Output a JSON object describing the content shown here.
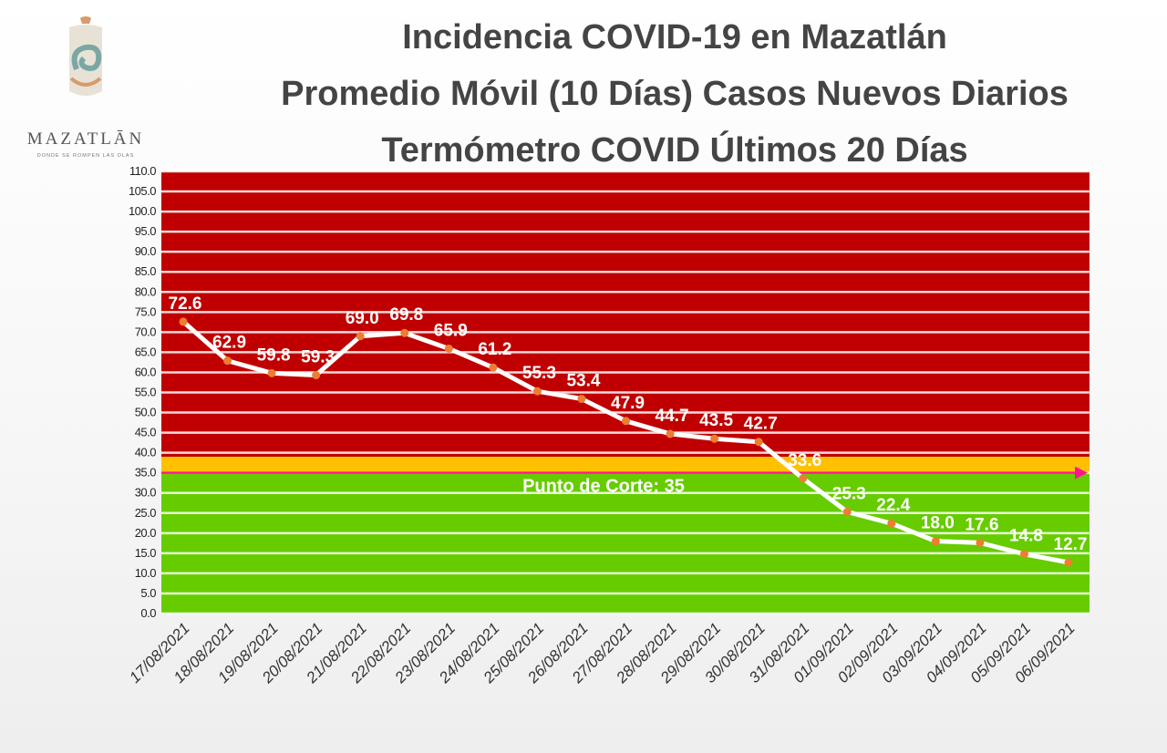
{
  "logo": {
    "name": "MAZATLĀN",
    "tagline": "DONDE SE ROMPEN LAS OLAS"
  },
  "titles": {
    "line1": "Incidencia COVID-19 en Mazatlán",
    "line2": "Promedio Móvil (10 Días) Casos Nuevos Diarios",
    "line3": "Termómetro COVID Últimos 20 Días"
  },
  "colors": {
    "red_zone": "#c00000",
    "yellow_zone": "#ffc000",
    "green_zone": "#66cc00",
    "line": "#ffffff",
    "marker": "#ed7d31",
    "cut_line": "#ff1493"
  },
  "chart_data": {
    "type": "line",
    "title": "Termómetro COVID Últimos 20 Días",
    "categories": [
      "17/08/2021",
      "18/08/2021",
      "19/08/2021",
      "20/08/2021",
      "21/08/2021",
      "22/08/2021",
      "23/08/2021",
      "24/08/2021",
      "25/08/2021",
      "26/08/2021",
      "27/08/2021",
      "28/08/2021",
      "29/08/2021",
      "30/08/2021",
      "31/08/2021",
      "01/09/2021",
      "02/09/2021",
      "03/09/2021",
      "04/09/2021",
      "05/09/2021",
      "06/09/2021"
    ],
    "values": [
      72.6,
      62.9,
      59.8,
      59.3,
      69.0,
      69.8,
      65.9,
      61.2,
      55.3,
      53.4,
      47.9,
      44.7,
      43.5,
      42.7,
      33.6,
      25.3,
      22.4,
      18.0,
      17.6,
      14.8,
      12.7
    ],
    "data_labels": [
      "72.6",
      "62.9",
      "59.8",
      "59.3",
      "69.0",
      "69.8",
      "65.9",
      "61.2",
      "55.3",
      "53.4",
      "47.9",
      "44.7",
      "43.5",
      "42.7",
      "33.6",
      "25.3",
      "22.4",
      "18.0",
      "17.6",
      "14.8",
      "12.7"
    ],
    "ylim": [
      0,
      110
    ],
    "ystep": 5,
    "y_ticks": [
      "0.0",
      "5.0",
      "10.0",
      "15.0",
      "20.0",
      "25.0",
      "30.0",
      "35.0",
      "40.0",
      "45.0",
      "50.0",
      "55.0",
      "60.0",
      "65.0",
      "70.0",
      "75.0",
      "80.0",
      "85.0",
      "90.0",
      "95.0",
      "100.0",
      "105.0",
      "110.0"
    ],
    "bands": [
      {
        "from": 39,
        "to": 110,
        "color": "#c00000"
      },
      {
        "from": 35,
        "to": 39,
        "color": "#ffc000"
      },
      {
        "from": 0,
        "to": 35,
        "color": "#66cc00"
      }
    ],
    "cut_point": 35,
    "cut_label": "Punto de Corte: 35",
    "grid": true,
    "legend": "none"
  }
}
